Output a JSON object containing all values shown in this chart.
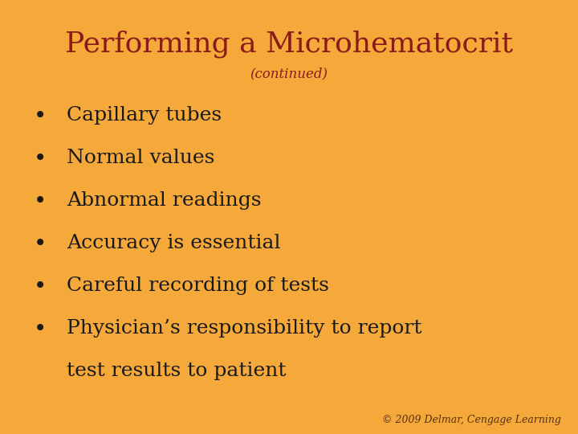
{
  "title": "Performing a Microhematocrit",
  "subtitle": "(continued)",
  "title_color": "#8B1A1A",
  "subtitle_color": "#8B1A1A",
  "background_color": "#F5A93B",
  "bullet_color": "#1a1a1a",
  "bullet_items": [
    "Capillary tubes",
    "Normal values",
    "Abnormal readings",
    "Accuracy is essential",
    "Careful recording of tests",
    "Physician’s responsibility to report",
    "test results to patient"
  ],
  "bullet_has_dot": [
    true,
    true,
    true,
    true,
    true,
    true,
    false
  ],
  "footer": "© 2009 Delmar, Cengage Learning",
  "footer_color": "#5a3010",
  "title_fontsize": 26,
  "subtitle_fontsize": 12,
  "bullet_fontsize": 18,
  "footer_fontsize": 9
}
